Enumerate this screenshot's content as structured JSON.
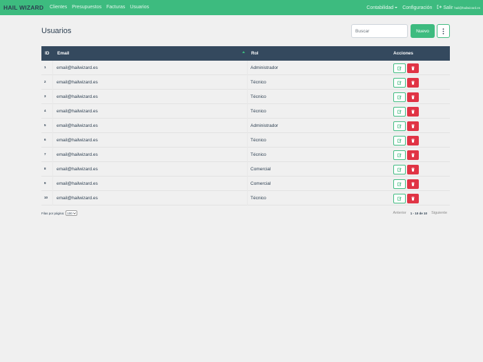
{
  "nav": {
    "brand": "HAIL WIZARD",
    "links": [
      "Clientes",
      "Presupuestos",
      "Facturas",
      "Usuarios"
    ],
    "contabilidad": "Contabilidad",
    "configuracion": "Configuración",
    "salir": "Salir",
    "user_email": "hail@hailwizard.es"
  },
  "page": {
    "title": "Usuarios",
    "search_placeholder": "Buscar",
    "new_label": "Nuevo"
  },
  "table": {
    "headers": {
      "id": "ID",
      "email": "Email",
      "rol": "Rol",
      "acciones": "Acciones"
    },
    "rows": [
      {
        "id": "1",
        "email": "email@hailwizard.es",
        "rol": "Administrador"
      },
      {
        "id": "2",
        "email": "email@hailwizard.es",
        "rol": "Técnico"
      },
      {
        "id": "3",
        "email": "email@hailwizard.es",
        "rol": "Técnico"
      },
      {
        "id": "4",
        "email": "email@hailwizard.es",
        "rol": "Técnico"
      },
      {
        "id": "5",
        "email": "email@hailwizard.es",
        "rol": "Administrador"
      },
      {
        "id": "6",
        "email": "email@hailwizard.es",
        "rol": "Técnico"
      },
      {
        "id": "7",
        "email": "email@hailwizard.es",
        "rol": "Técnico"
      },
      {
        "id": "8",
        "email": "email@hailwizard.es",
        "rol": "Comercial"
      },
      {
        "id": "9",
        "email": "email@hailwizard.es",
        "rol": "Comercial"
      },
      {
        "id": "10",
        "email": "email@hailwizard.es",
        "rol": "Técnico"
      }
    ]
  },
  "footer": {
    "rows_per_page_label": "Filas por página:",
    "rows_per_page_value": "100",
    "prev": "Anterior",
    "range": "1 - 10 de 10",
    "next": "Siguiente"
  },
  "icons": {
    "edit": "pencil-square-icon",
    "delete": "trash-icon",
    "more": "vertical-dots-icon",
    "exit": "sign-out-icon",
    "sort": "sort-asc-icon"
  },
  "colors": {
    "primary": "#3dbb7f",
    "header_dark": "#34495e",
    "danger": "#e03445"
  }
}
